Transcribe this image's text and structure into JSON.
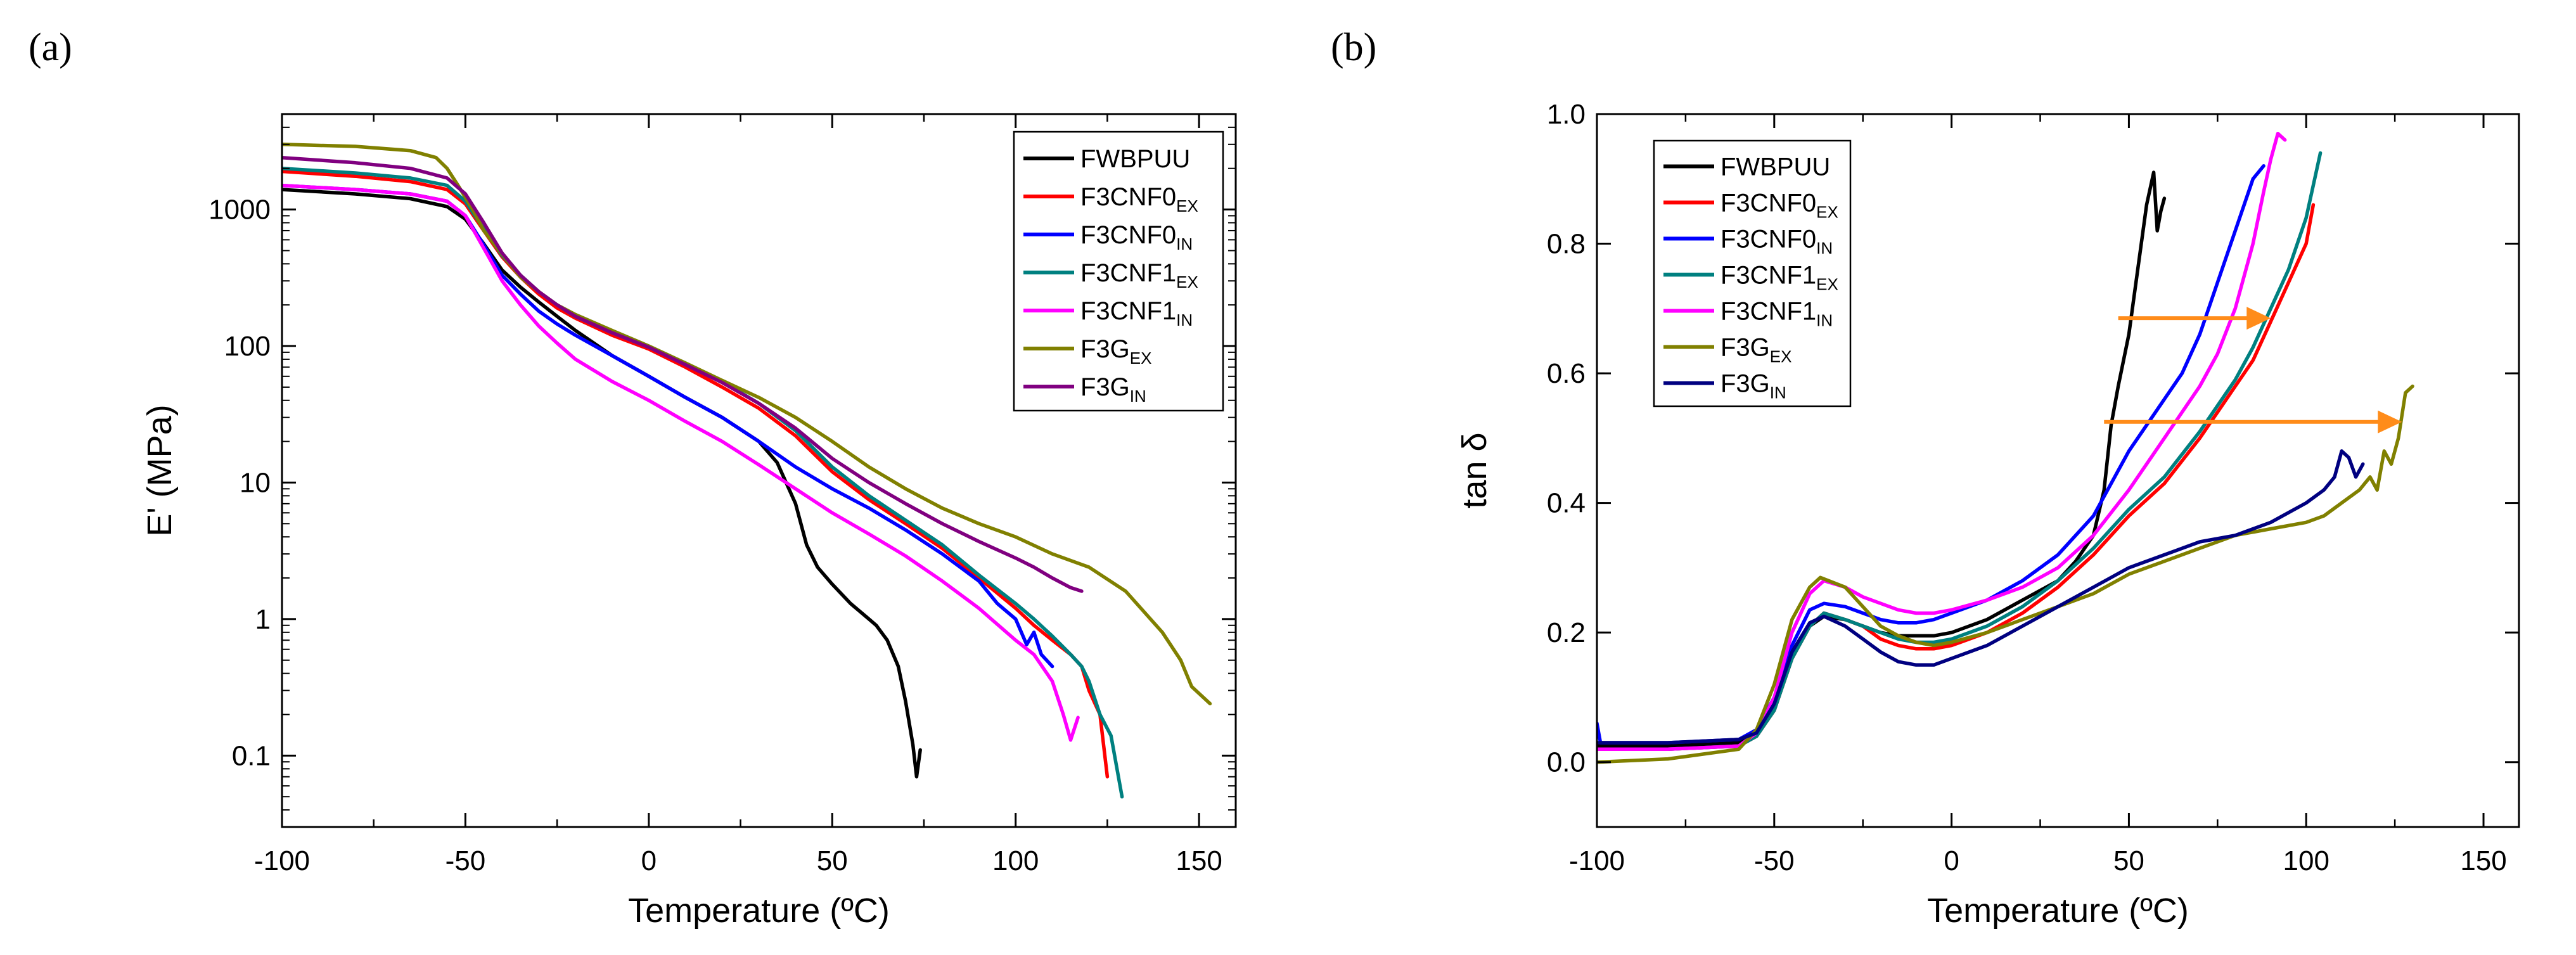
{
  "chart_data": [
    {
      "type": "line",
      "panel_label": "(a)",
      "xlabel": "Temperature (ºC)",
      "ylabel": "E' (MPa)",
      "xlim": [
        -100,
        160
      ],
      "ylim": [
        0.03,
        5000
      ],
      "yscale": "log",
      "xticks": [
        -100,
        -50,
        0,
        50,
        100,
        150
      ],
      "yticks": [
        0.1,
        1,
        10,
        100,
        1000
      ],
      "ytick_labels": [
        "0.1",
        "1",
        "10",
        "100",
        "1000"
      ],
      "legend_position": "top-right",
      "series": [
        {
          "name": "FWBPUU",
          "main": "FWBPUU",
          "sub": "",
          "color": "#000000",
          "x": [
            -100,
            -80,
            -65,
            -55,
            -50,
            -45,
            -40,
            -35,
            -30,
            -25,
            -20,
            -10,
            0,
            10,
            20,
            30,
            35,
            40,
            43,
            46,
            50,
            55,
            60,
            62,
            65,
            68,
            70,
            72,
            73,
            74
          ],
          "y": [
            1400,
            1300,
            1200,
            1050,
            850,
            560,
            360,
            270,
            210,
            165,
            130,
            85,
            60,
            42,
            30,
            20,
            14,
            7,
            3.5,
            2.4,
            1.8,
            1.3,
            1.0,
            0.9,
            0.7,
            0.45,
            0.25,
            0.12,
            0.07,
            0.11
          ]
        },
        {
          "name": "F3CNF0EX",
          "main": "F3CNF0",
          "sub": "EX",
          "color": "#ff0000",
          "x": [
            -100,
            -80,
            -65,
            -55,
            -50,
            -45,
            -40,
            -35,
            -30,
            -25,
            -20,
            -10,
            0,
            10,
            20,
            30,
            40,
            50,
            60,
            70,
            80,
            90,
            100,
            105,
            110,
            115,
            118,
            120,
            123,
            125
          ],
          "y": [
            1900,
            1750,
            1600,
            1400,
            1100,
            700,
            450,
            320,
            240,
            190,
            160,
            120,
            95,
            70,
            50,
            35,
            22,
            12,
            7.5,
            5,
            3.3,
            2,
            1.2,
            0.9,
            0.7,
            0.55,
            0.45,
            0.3,
            0.2,
            0.07
          ]
        },
        {
          "name": "F3CNF0IN",
          "main": "F3CNF0",
          "sub": "IN",
          "color": "#0000ff",
          "x": [
            -100,
            -80,
            -65,
            -55,
            -50,
            -45,
            -40,
            -35,
            -30,
            -25,
            -20,
            -10,
            0,
            10,
            20,
            30,
            40,
            50,
            60,
            70,
            80,
            90,
            95,
            100,
            103,
            105,
            107,
            110
          ],
          "y": [
            1500,
            1400,
            1300,
            1150,
            900,
            550,
            330,
            240,
            180,
            145,
            120,
            85,
            60,
            42,
            30,
            20,
            13,
            9,
            6.5,
            4.5,
            3,
            1.9,
            1.3,
            1.0,
            0.65,
            0.8,
            0.55,
            0.45
          ]
        },
        {
          "name": "F3CNF1EX",
          "main": "F3CNF1",
          "sub": "EX",
          "color": "#008080",
          "x": [
            -100,
            -80,
            -65,
            -55,
            -50,
            -45,
            -40,
            -35,
            -30,
            -25,
            -20,
            -10,
            0,
            10,
            20,
            30,
            40,
            50,
            60,
            70,
            80,
            90,
            100,
            105,
            110,
            115,
            118,
            120,
            123,
            126,
            129
          ],
          "y": [
            2000,
            1850,
            1700,
            1500,
            1150,
            720,
            460,
            330,
            250,
            200,
            165,
            125,
            98,
            75,
            55,
            38,
            24,
            13,
            8,
            5.3,
            3.5,
            2.1,
            1.3,
            1.0,
            0.75,
            0.55,
            0.45,
            0.35,
            0.2,
            0.14,
            0.05
          ]
        },
        {
          "name": "F3CNF1IN",
          "main": "F3CNF1",
          "sub": "IN",
          "color": "#ff00ff",
          "x": [
            -100,
            -80,
            -65,
            -55,
            -50,
            -45,
            -40,
            -35,
            -30,
            -25,
            -20,
            -10,
            0,
            10,
            20,
            30,
            40,
            50,
            60,
            70,
            80,
            90,
            100,
            105,
            110,
            113,
            115,
            117
          ],
          "y": [
            1500,
            1400,
            1300,
            1150,
            900,
            520,
            300,
            200,
            140,
            105,
            80,
            55,
            40,
            28,
            20,
            13.5,
            9,
            6,
            4.2,
            2.9,
            1.9,
            1.2,
            0.7,
            0.55,
            0.35,
            0.2,
            0.13,
            0.19
          ]
        },
        {
          "name": "F3GEX",
          "main": "F3G",
          "sub": "EX",
          "color": "#808000",
          "x": [
            -100,
            -80,
            -65,
            -58,
            -55,
            -52,
            -48,
            -45,
            -40,
            -35,
            -30,
            -25,
            -20,
            -10,
            0,
            10,
            20,
            30,
            40,
            50,
            60,
            70,
            80,
            90,
            100,
            110,
            120,
            130,
            140,
            145,
            148,
            153
          ],
          "y": [
            3000,
            2900,
            2700,
            2400,
            2000,
            1500,
            1000,
            700,
            470,
            320,
            250,
            200,
            170,
            130,
            100,
            75,
            56,
            42,
            30,
            20,
            13,
            9,
            6.5,
            5,
            4,
            3,
            2.4,
            1.6,
            0.8,
            0.5,
            0.32,
            0.24
          ]
        },
        {
          "name": "F3GIN",
          "main": "F3G",
          "sub": "IN",
          "color": "#800080",
          "x": [
            -100,
            -80,
            -65,
            -55,
            -50,
            -45,
            -40,
            -35,
            -30,
            -25,
            -20,
            -10,
            0,
            10,
            20,
            30,
            40,
            50,
            60,
            70,
            80,
            90,
            100,
            105,
            110,
            115,
            118
          ],
          "y": [
            2400,
            2200,
            2000,
            1700,
            1300,
            800,
            480,
            330,
            250,
            200,
            165,
            125,
            98,
            73,
            54,
            38,
            25,
            15,
            10,
            7,
            5,
            3.7,
            2.8,
            2.4,
            2.0,
            1.7,
            1.6
          ]
        }
      ]
    },
    {
      "type": "line",
      "panel_label": "(b)",
      "xlabel": "Temperature (ºC)",
      "ylabel": "tan δ",
      "xlim": [
        -100,
        160
      ],
      "ylim": [
        -0.1,
        1.0
      ],
      "yscale": "linear",
      "xticks": [
        -100,
        -50,
        0,
        50,
        100,
        150
      ],
      "yticks": [
        0.0,
        0.2,
        0.4,
        0.6,
        0.8,
        1.0
      ],
      "ytick_labels": [
        "0.0",
        "0.2",
        "0.4",
        "0.6",
        "0.8",
        "1.0"
      ],
      "legend_position": "top-left",
      "annotations": [
        {
          "type": "arrow",
          "color": "#ff8c1a",
          "from": [
            47,
            0.685
          ],
          "to": [
            90,
            0.685
          ]
        },
        {
          "type": "arrow",
          "color": "#ff8c1a",
          "from": [
            43,
            0.525
          ],
          "to": [
            127,
            0.525
          ]
        }
      ],
      "series": [
        {
          "name": "FWBPUU",
          "main": "FWBPUU",
          "sub": "",
          "color": "#000000",
          "x": [
            -100,
            -80,
            -60,
            -55,
            -50,
            -45,
            -40,
            -36,
            -30,
            -25,
            -20,
            -15,
            -10,
            -5,
            0,
            10,
            20,
            30,
            35,
            40,
            43,
            45,
            47,
            50,
            53,
            55,
            57,
            58,
            59,
            60
          ],
          "y": [
            0.025,
            0.025,
            0.03,
            0.04,
            0.08,
            0.16,
            0.21,
            0.225,
            0.22,
            0.21,
            0.2,
            0.195,
            0.195,
            0.195,
            0.2,
            0.22,
            0.25,
            0.28,
            0.31,
            0.35,
            0.42,
            0.52,
            0.58,
            0.66,
            0.78,
            0.86,
            0.91,
            0.82,
            0.85,
            0.87
          ]
        },
        {
          "name": "F3CNF0EX",
          "main": "F3CNF0",
          "sub": "EX",
          "color": "#ff0000",
          "x": [
            -100,
            -80,
            -60,
            -55,
            -50,
            -45,
            -40,
            -36,
            -30,
            -25,
            -20,
            -15,
            -10,
            -5,
            0,
            10,
            20,
            30,
            40,
            50,
            60,
            70,
            80,
            85,
            90,
            95,
            100,
            102
          ],
          "y": [
            0.02,
            0.02,
            0.025,
            0.04,
            0.08,
            0.16,
            0.21,
            0.23,
            0.22,
            0.21,
            0.19,
            0.18,
            0.175,
            0.175,
            0.18,
            0.2,
            0.23,
            0.27,
            0.32,
            0.38,
            0.43,
            0.5,
            0.58,
            0.62,
            0.68,
            0.74,
            0.8,
            0.86
          ]
        },
        {
          "name": "F3CNF0IN",
          "main": "F3CNF0",
          "sub": "IN",
          "color": "#0000ff",
          "x": [
            -100,
            -99,
            -80,
            -60,
            -55,
            -50,
            -45,
            -40,
            -36,
            -30,
            -25,
            -20,
            -15,
            -10,
            -5,
            0,
            10,
            20,
            30,
            40,
            50,
            55,
            60,
            65,
            70,
            75,
            80,
            85,
            88
          ],
          "y": [
            0.06,
            0.03,
            0.03,
            0.035,
            0.05,
            0.1,
            0.18,
            0.235,
            0.245,
            0.24,
            0.23,
            0.22,
            0.215,
            0.215,
            0.22,
            0.23,
            0.25,
            0.28,
            0.32,
            0.38,
            0.48,
            0.52,
            0.56,
            0.6,
            0.66,
            0.74,
            0.82,
            0.9,
            0.92
          ]
        },
        {
          "name": "F3CNF1EX",
          "main": "F3CNF1",
          "sub": "EX",
          "color": "#008080",
          "x": [
            -100,
            -80,
            -60,
            -55,
            -50,
            -45,
            -40,
            -36,
            -30,
            -25,
            -20,
            -15,
            -10,
            -5,
            0,
            10,
            20,
            30,
            40,
            50,
            60,
            70,
            80,
            85,
            90,
            95,
            100,
            104
          ],
          "y": [
            0.02,
            0.02,
            0.025,
            0.04,
            0.08,
            0.16,
            0.21,
            0.23,
            0.22,
            0.21,
            0.2,
            0.19,
            0.185,
            0.185,
            0.19,
            0.21,
            0.24,
            0.28,
            0.33,
            0.39,
            0.44,
            0.51,
            0.59,
            0.64,
            0.7,
            0.76,
            0.84,
            0.94
          ]
        },
        {
          "name": "F3CNF1IN",
          "main": "F3CNF1",
          "sub": "IN",
          "color": "#ff00ff",
          "x": [
            -100,
            -80,
            -60,
            -55,
            -50,
            -45,
            -40,
            -36,
            -30,
            -25,
            -20,
            -15,
            -10,
            -5,
            0,
            10,
            20,
            30,
            40,
            50,
            60,
            70,
            75,
            80,
            85,
            88,
            90,
            92,
            94
          ],
          "y": [
            0.02,
            0.02,
            0.025,
            0.045,
            0.1,
            0.2,
            0.26,
            0.28,
            0.27,
            0.255,
            0.245,
            0.235,
            0.23,
            0.23,
            0.235,
            0.25,
            0.27,
            0.3,
            0.35,
            0.42,
            0.5,
            0.58,
            0.63,
            0.7,
            0.8,
            0.88,
            0.93,
            0.97,
            0.96
          ]
        },
        {
          "name": "F3GEX",
          "main": "F3G",
          "sub": "EX",
          "color": "#808000",
          "x": [
            -100,
            -80,
            -60,
            -55,
            -50,
            -45,
            -40,
            -37,
            -30,
            -25,
            -20,
            -15,
            -10,
            -5,
            0,
            10,
            20,
            30,
            40,
            50,
            60,
            70,
            80,
            90,
            100,
            105,
            110,
            115,
            118,
            120,
            122,
            124,
            126,
            128,
            130
          ],
          "y": [
            0.0,
            0.005,
            0.02,
            0.05,
            0.12,
            0.22,
            0.27,
            0.285,
            0.27,
            0.24,
            0.21,
            0.195,
            0.185,
            0.18,
            0.185,
            0.2,
            0.22,
            0.24,
            0.26,
            0.29,
            0.31,
            0.33,
            0.35,
            0.36,
            0.37,
            0.38,
            0.4,
            0.42,
            0.44,
            0.42,
            0.48,
            0.46,
            0.5,
            0.57,
            0.58
          ]
        },
        {
          "name": "F3GIN",
          "main": "F3G",
          "sub": "IN",
          "color": "#000080",
          "x": [
            -100,
            -80,
            -60,
            -55,
            -50,
            -45,
            -40,
            -36,
            -30,
            -25,
            -20,
            -15,
            -10,
            -5,
            0,
            10,
            20,
            30,
            40,
            50,
            60,
            70,
            80,
            90,
            100,
            105,
            108,
            110,
            112,
            114,
            116
          ],
          "y": [
            0.03,
            0.03,
            0.035,
            0.045,
            0.09,
            0.17,
            0.215,
            0.225,
            0.21,
            0.19,
            0.17,
            0.155,
            0.15,
            0.15,
            0.16,
            0.18,
            0.21,
            0.24,
            0.27,
            0.3,
            0.32,
            0.34,
            0.35,
            0.37,
            0.4,
            0.42,
            0.44,
            0.48,
            0.47,
            0.44,
            0.46
          ]
        }
      ]
    }
  ]
}
